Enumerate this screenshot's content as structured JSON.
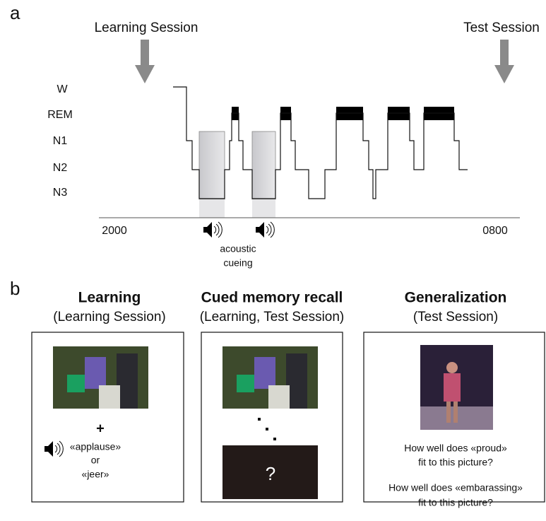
{
  "panel_a": {
    "label": "a",
    "learning_session": "Learning Session",
    "test_session": "Test Session",
    "stages": [
      "W",
      "REM",
      "N1",
      "N2",
      "N3"
    ],
    "time_start": "2000",
    "time_end": "0800",
    "cueing": [
      "acoustic",
      "cueing"
    ]
  },
  "panel_b": {
    "label": "b",
    "columns": [
      {
        "title": "Learning",
        "subtitle": "(Learning Session)",
        "texts": [
          "+",
          "«applause»",
          "or",
          "«jeer»"
        ]
      },
      {
        "title": "Cued memory recall",
        "subtitle": "(Learning, Test Session)",
        "texts": [
          "?"
        ]
      },
      {
        "title": "Generalization",
        "subtitle": "(Test Session)",
        "texts": [
          "How well does «proud»",
          "fit to this picture?",
          "How well does «embarassing»",
          "fit to this picture?"
        ]
      }
    ]
  }
}
